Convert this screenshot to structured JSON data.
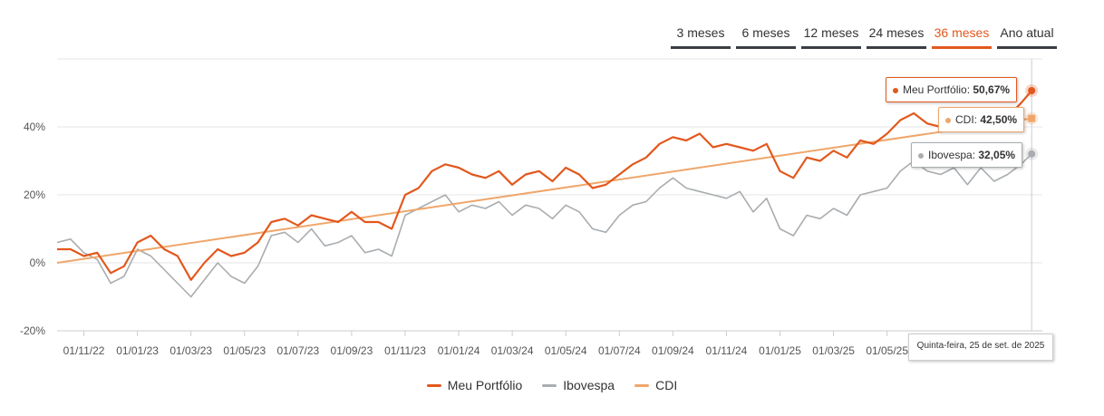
{
  "tabs": [
    {
      "label": "3 meses",
      "active": false
    },
    {
      "label": "6 meses",
      "active": false
    },
    {
      "label": "12 meses",
      "active": false
    },
    {
      "label": "24 meses",
      "active": false
    },
    {
      "label": "36 meses",
      "active": true
    },
    {
      "label": "Ano atual",
      "active": false
    }
  ],
  "tooltip": {
    "date": "Quinta-feira, 25 de set. de 2025",
    "entries": [
      {
        "name": "Meu Portfólio",
        "value": "50,67%"
      },
      {
        "name": "CDI",
        "value": "42,50%"
      },
      {
        "name": "Ibovespa",
        "value": "32,05%"
      }
    ]
  },
  "chart_data": {
    "type": "line",
    "title": "",
    "xlabel": "",
    "ylabel": "",
    "ylim": [
      -20,
      60
    ],
    "yticks": [
      -20,
      0,
      20,
      40
    ],
    "ytick_labels": [
      "-20%",
      "0%",
      "20%",
      "40%"
    ],
    "xlim": [
      0,
      36.8
    ],
    "xtick_labels": [
      "01/11/22",
      "01/01/23",
      "01/03/23",
      "01/05/23",
      "01/07/23",
      "01/09/23",
      "01/11/23",
      "01/01/24",
      "01/03/24",
      "01/05/24",
      "01/07/24",
      "01/09/24",
      "01/11/24",
      "01/01/25",
      "01/03/25",
      "01/05/25"
    ],
    "xtick_positions": [
      1,
      3,
      5,
      7,
      9,
      11,
      13,
      15,
      17,
      19,
      21,
      23,
      25,
      27,
      29,
      31
    ],
    "colors": {
      "Meu Portfólio": "#e2581d",
      "Ibovespa": "#a9adb0",
      "CDI": "#efa66b"
    },
    "series": [
      {
        "name": "Meu Portfólio",
        "x": [
          0,
          0.5,
          1,
          1.5,
          2,
          2.5,
          3,
          3.5,
          4,
          4.5,
          5,
          5.5,
          6,
          6.5,
          7,
          7.5,
          8,
          8.5,
          9,
          9.5,
          10,
          10.5,
          11,
          11.5,
          12,
          12.5,
          13,
          13.5,
          14,
          14.5,
          15,
          15.5,
          16,
          16.5,
          17,
          17.5,
          18,
          18.5,
          19,
          19.5,
          20,
          20.5,
          21,
          21.5,
          22,
          22.5,
          23,
          23.5,
          24,
          24.5,
          25,
          25.5,
          26,
          26.5,
          27,
          27.5,
          28,
          28.5,
          29,
          29.5,
          30,
          30.5,
          31,
          31.5,
          32,
          32.5,
          33,
          33.5,
          34,
          34.5,
          35,
          35.5,
          36,
          36.4
        ],
        "values": [
          4,
          4,
          2,
          3,
          -3,
          -1,
          6,
          8,
          4,
          2,
          -5,
          0,
          4,
          2,
          3,
          6,
          12,
          13,
          11,
          14,
          13,
          12,
          15,
          12,
          12,
          10,
          20,
          22,
          27,
          29,
          28,
          26,
          25,
          27,
          23,
          26,
          27,
          24,
          28,
          26,
          22,
          23,
          26,
          29,
          31,
          35,
          37,
          36,
          38,
          34,
          35,
          34,
          33,
          35,
          27,
          25,
          31,
          30,
          33,
          31,
          36,
          35,
          38,
          42,
          44,
          41,
          40,
          43,
          39,
          45,
          42,
          43,
          47,
          50.67
        ]
      },
      {
        "name": "Ibovespa",
        "x": [
          0,
          0.5,
          1,
          1.5,
          2,
          2.5,
          3,
          3.5,
          4,
          4.5,
          5,
          5.5,
          6,
          6.5,
          7,
          7.5,
          8,
          8.5,
          9,
          9.5,
          10,
          10.5,
          11,
          11.5,
          12,
          12.5,
          13,
          13.5,
          14,
          14.5,
          15,
          15.5,
          16,
          16.5,
          17,
          17.5,
          18,
          18.5,
          19,
          19.5,
          20,
          20.5,
          21,
          21.5,
          22,
          22.5,
          23,
          23.5,
          24,
          24.5,
          25,
          25.5,
          26,
          26.5,
          27,
          27.5,
          28,
          28.5,
          29,
          29.5,
          30,
          30.5,
          31,
          31.5,
          32,
          32.5,
          33,
          33.5,
          34,
          34.5,
          35,
          35.5,
          36,
          36.4
        ],
        "values": [
          6,
          7,
          3,
          1,
          -6,
          -4,
          4,
          2,
          -2,
          -6,
          -10,
          -5,
          0,
          -4,
          -6,
          -1,
          8,
          9,
          6,
          10,
          5,
          6,
          8,
          3,
          4,
          2,
          14,
          16,
          18,
          20,
          15,
          17,
          16,
          18,
          14,
          17,
          16,
          13,
          17,
          15,
          10,
          9,
          14,
          17,
          18,
          22,
          25,
          22,
          21,
          20,
          19,
          21,
          15,
          19,
          10,
          8,
          14,
          13,
          16,
          14,
          20,
          21,
          22,
          27,
          30,
          27,
          26,
          28,
          23,
          28,
          24,
          26,
          29,
          32.05
        ]
      },
      {
        "name": "CDI",
        "x": [
          0,
          36.4
        ],
        "values": [
          0,
          42.5
        ]
      }
    ]
  },
  "legend": [
    {
      "name": "Meu Portfólio"
    },
    {
      "name": "Ibovespa"
    },
    {
      "name": "CDI"
    }
  ]
}
